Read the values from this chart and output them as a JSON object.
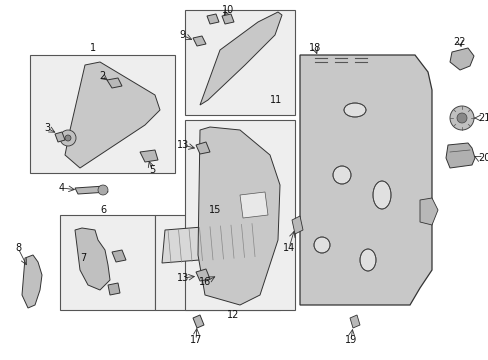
{
  "bg_color": "#ffffff",
  "line_color": "#333333",
  "part_fill": "#d0d0d0",
  "part_edge": "#333333",
  "box_fill": "#eeeeee",
  "box_edge": "#555555",
  "font_size": 7,
  "fig_w": 4.89,
  "fig_h": 3.6,
  "dpi": 100
}
